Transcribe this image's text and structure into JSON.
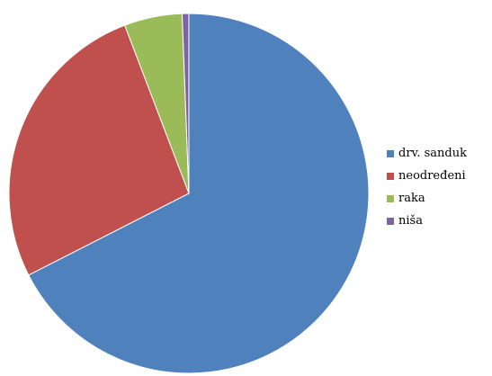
{
  "chart_data": {
    "type": "pie",
    "start_angle_deg": 0,
    "direction": "clockwise",
    "legend_position": "right",
    "slices": [
      {
        "label": "drv. sanduk",
        "value": 67.5,
        "color": "#4F81BD"
      },
      {
        "label": "neodređeni",
        "value": 26.7,
        "color": "#C0504D"
      },
      {
        "label": "raka",
        "value": 5.2,
        "color": "#9BBB59"
      },
      {
        "label": "niša",
        "value": 0.6,
        "color": "#8064A2"
      }
    ]
  }
}
